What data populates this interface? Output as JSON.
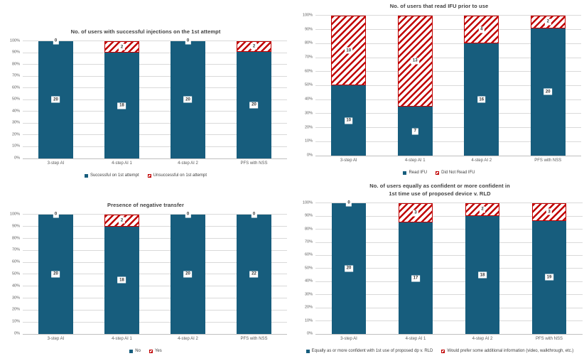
{
  "page": {
    "background": "#ffffff"
  },
  "colors": {
    "series_solid": "#175D7D",
    "series_hatched": "#C00000",
    "gridline": "#D9D9D9",
    "baseline": "#BFBFBF",
    "axis_text": "#595959",
    "title_text": "#404040",
    "value_label_text": "#333333"
  },
  "chart_data": [
    {
      "type": "bar",
      "stacked": true,
      "percent_axis": true,
      "grid": true,
      "legend_position": "bottom",
      "title": "No. of users with successful injections on the 1st attempt",
      "categories": [
        "3-step AI",
        "4-step AI 1",
        "4-step AI 2",
        "PFS with NSS"
      ],
      "series": [
        {
          "name": "Successful on 1st attempt",
          "values": [
            20,
            18,
            20,
            20
          ],
          "color": "#175D7D",
          "pattern": "solid"
        },
        {
          "name": "Unsuccessful on 1st attempt",
          "values": [
            0,
            2,
            0,
            2
          ],
          "color": "#C00000",
          "pattern": "diagonal-hatch"
        }
      ],
      "ylim": [
        0,
        100
      ],
      "yticks": [
        "0%",
        "10%",
        "20%",
        "30%",
        "40%",
        "50%",
        "60%",
        "70%",
        "80%",
        "90%",
        "100%"
      ]
    },
    {
      "type": "bar",
      "stacked": true,
      "percent_axis": true,
      "grid": true,
      "legend_position": "bottom",
      "title": "No. of users that read IFU prior to use",
      "categories": [
        "3-step AI",
        "4-step AI 1",
        "4-step AI 2",
        "PFS with NSS"
      ],
      "series": [
        {
          "name": "Read IFU",
          "values": [
            10,
            7,
            16,
            20
          ],
          "color": "#175D7D",
          "pattern": "solid"
        },
        {
          "name": "Did Not Read IFU",
          "values": [
            10,
            13,
            4,
            2
          ],
          "color": "#C00000",
          "pattern": "diagonal-hatch"
        }
      ],
      "ylim": [
        0,
        100
      ],
      "yticks": [
        "0%",
        "10%",
        "20%",
        "30%",
        "40%",
        "50%",
        "60%",
        "70%",
        "80%",
        "90%",
        "100%"
      ]
    },
    {
      "type": "bar",
      "stacked": true,
      "percent_axis": true,
      "grid": true,
      "legend_position": "bottom",
      "title": "Presence of negative transfer",
      "categories": [
        "3-step AI",
        "4-step AI 1",
        "4-step AI 2",
        "PFS with NSS"
      ],
      "series": [
        {
          "name": "No",
          "values": [
            20,
            18,
            20,
            22
          ],
          "color": "#175D7D",
          "pattern": "solid"
        },
        {
          "name": "Yes",
          "values": [
            0,
            2,
            0,
            0
          ],
          "color": "#C00000",
          "pattern": "diagonal-hatch"
        }
      ],
      "ylim": [
        0,
        100
      ],
      "yticks": [
        "0%",
        "10%",
        "20%",
        "30%",
        "40%",
        "50%",
        "60%",
        "70%",
        "80%",
        "90%",
        "100%"
      ]
    },
    {
      "type": "bar",
      "stacked": true,
      "percent_axis": true,
      "grid": true,
      "legend_position": "bottom",
      "title": "No. of users equally as confident or more confident in 1st time use of proposed device v. RLD",
      "title_lines": [
        "No. of users equally as confident or more confident in",
        "1st time use of proposed device v. RLD"
      ],
      "categories": [
        "3-step AI",
        "4-step AI 1",
        "4-step AI 2",
        "PFS with NSS"
      ],
      "series": [
        {
          "name": "Equally as or more confident with 1st use of proposed dp v. RLD",
          "values": [
            20,
            17,
            18,
            19
          ],
          "color": "#175D7D",
          "pattern": "solid"
        },
        {
          "name": "Would prefer some additional information (video, walkthrough, etc.)",
          "values": [
            0,
            3,
            2,
            3
          ],
          "color": "#C00000",
          "pattern": "diagonal-hatch"
        }
      ],
      "ylim": [
        0,
        100
      ],
      "yticks": [
        "0%",
        "10%",
        "20%",
        "30%",
        "40%",
        "50%",
        "60%",
        "70%",
        "80%",
        "90%",
        "100%"
      ]
    }
  ]
}
